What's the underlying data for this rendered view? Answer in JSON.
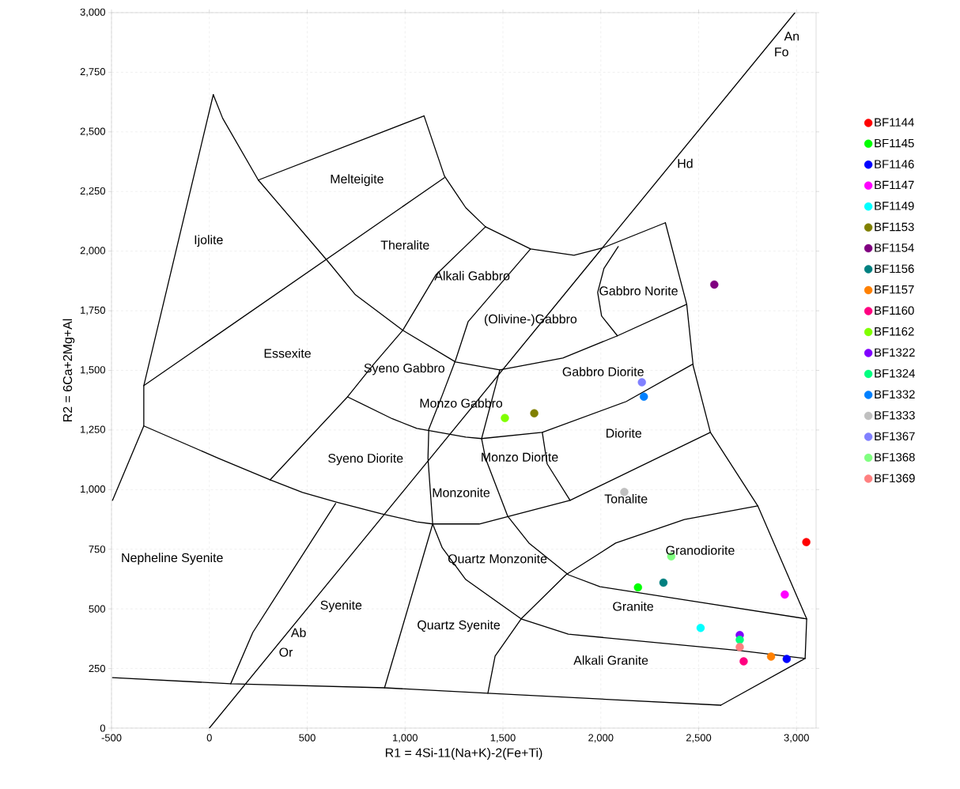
{
  "chart_data": {
    "type": "scatter",
    "xlabel": "R1 = 4Si-11(Na+K)-2(Fe+Ti)",
    "ylabel": "R2 = 6Ca+2Mg+Al",
    "xlim": [
      -500,
      3100
    ],
    "ylim": [
      0,
      3000
    ],
    "xticks": [
      -500,
      0,
      500,
      {
        "value": 1000,
        "label": "1,000"
      },
      {
        "value": 1500,
        "label": "1,500"
      },
      {
        "value": 2000,
        "label": "2,000"
      },
      {
        "value": 2500,
        "label": "2,500"
      },
      {
        "value": 3000,
        "label": "3,000"
      }
    ],
    "yticks": [
      0,
      250,
      500,
      750,
      {
        "value": 1000,
        "label": "1,000"
      },
      {
        "value": 1250,
        "label": "1,250"
      },
      {
        "value": 1500,
        "label": "1,500"
      },
      {
        "value": 1750,
        "label": "1,750"
      },
      {
        "value": 2000,
        "label": "2,000"
      },
      {
        "value": 2250,
        "label": "2,250"
      },
      {
        "value": 2500,
        "label": "2,500"
      },
      {
        "value": 2750,
        "label": "2,750"
      },
      {
        "value": 3000,
        "label": "3,000"
      }
    ],
    "grid": true,
    "legend": "right",
    "series": [
      {
        "type": "line",
        "marker": "none",
        "color": "#000000",
        "x": [
          -495,
          -335,
          -335,
          20
        ],
        "values": [
          955,
          1267,
          1436,
          2656
        ]
      },
      {
        "type": "line",
        "marker": "none",
        "color": "#000000",
        "x": [
          20,
          68,
          250,
          613,
          746,
          988,
          1258,
          1484,
          1806,
          2085,
          2439
        ],
        "values": [
          2656,
          2557,
          2298,
          1950,
          1817,
          1668,
          1535,
          1502,
          1552,
          1645,
          1777
        ]
      },
      {
        "type": "line",
        "marker": "none",
        "color": "#000000",
        "x": [
          250,
          1097
        ],
        "values": [
          2298,
          2567
        ]
      },
      {
        "type": "line",
        "marker": "none",
        "color": "#000000",
        "x": [
          1097,
          1201,
          1310,
          1411,
          1641,
          1863,
          2008,
          2330
        ],
        "values": [
          2567,
          2315,
          2182,
          2102,
          2009,
          1983,
          2013,
          2119
        ]
      },
      {
        "type": "line",
        "marker": "none",
        "color": "#000000",
        "x": [
          -335,
          1201
        ],
        "values": [
          1436,
          2308
        ]
      },
      {
        "type": "line",
        "marker": "none",
        "color": "#000000",
        "x": [
          1411,
          1157,
          988,
          839,
          706,
          310
        ],
        "values": [
          2102,
          1900,
          1668,
          1525,
          1389,
          1041
        ]
      },
      {
        "type": "line",
        "marker": "none",
        "color": "#000000",
        "x": [
          1641,
          1322,
          1258,
          1190,
          1121,
          1117,
          1141,
          1190,
          1310,
          1593,
          1834,
          2709,
          3044
        ],
        "values": [
          2009,
          1704,
          1543,
          1396,
          1253,
          1131,
          856,
          756,
          623,
          458,
          394,
          325,
          292
        ]
      },
      {
        "type": "line",
        "marker": "none",
        "color": "#000000",
        "x": [
          0,
          2992
        ],
        "values": [
          0,
          3000
        ]
      },
      {
        "type": "line",
        "marker": "none",
        "color": "#000000",
        "x": [
          2089,
          2016,
          1984,
          2004,
          2085
        ],
        "values": [
          2019,
          1927,
          1827,
          1728,
          1645
        ]
      },
      {
        "type": "line",
        "marker": "none",
        "color": "#000000",
        "x": [
          2330,
          2439,
          2472,
          2560,
          2802,
          3052,
          3044,
          2613
        ],
        "values": [
          2119,
          1777,
          1519,
          1240,
          932,
          458,
          292,
          96
        ]
      },
      {
        "type": "line",
        "marker": "none",
        "color": "#000000",
        "x": [
          -495,
          109,
          895,
          1423,
          2613
        ],
        "values": [
          212,
          186,
          169,
          146,
          96
        ]
      },
      {
        "type": "line",
        "marker": "none",
        "color": "#000000",
        "x": [
          706,
          935,
          1060,
          1310,
          1391,
          1701,
          2129,
          2468
        ],
        "values": [
          1389,
          1297,
          1257,
          1220,
          1214,
          1240,
          1369,
          1525
        ]
      },
      {
        "type": "line",
        "marker": "none",
        "color": "#000000",
        "x": [
          1701,
          1726,
          1843
        ],
        "values": [
          1240,
          1108,
          955
        ]
      },
      {
        "type": "line",
        "marker": "none",
        "color": "#000000",
        "x": [
          -335,
          48,
          310,
          476,
          653,
          879,
          1060,
          1141,
          1379,
          1843,
          2560
        ],
        "values": [
          1267,
          1131,
          1041,
          988,
          947,
          899,
          865,
          856,
          856,
          955,
          1240
        ]
      },
      {
        "type": "line",
        "marker": "none",
        "color": "#000000",
        "x": [
          1423,
          1460,
          1593,
          1822,
          2076,
          2427,
          2802
        ],
        "values": [
          146,
          302,
          458,
          643,
          776,
          875,
          932
        ]
      },
      {
        "type": "line",
        "marker": "none",
        "color": "#000000",
        "x": [
          1484,
          1391,
          1411,
          1524,
          1633,
          1834,
          1996,
          3052
        ],
        "values": [
          1502,
          1214,
          1131,
          889,
          776,
          643,
          593,
          458
        ]
      },
      {
        "type": "line",
        "marker": "none",
        "color": "#000000",
        "x": [
          645,
          395,
          222,
          109
        ],
        "values": [
          942,
          623,
          401,
          186
        ]
      },
      {
        "type": "line",
        "marker": "none",
        "color": "#000000",
        "x": [
          1141,
          1089,
          895
        ],
        "values": [
          856,
          710,
          169
        ]
      },
      {
        "name": "BF1144",
        "marker": "circle",
        "color": "#ff0000",
        "x": [
          3050
        ],
        "values": [
          780
        ]
      },
      {
        "name": "BF1145",
        "marker": "circle",
        "color": "#00ff00",
        "x": [
          2190
        ],
        "values": [
          590
        ]
      },
      {
        "name": "BF1146",
        "marker": "circle",
        "color": "#0000ff",
        "x": [
          2950
        ],
        "values": [
          290
        ]
      },
      {
        "name": "BF1147",
        "marker": "circle",
        "color": "#ff00ff",
        "x": [
          2940
        ],
        "values": [
          560
        ]
      },
      {
        "name": "BF1149",
        "marker": "circle",
        "color": "#00ffff",
        "x": [
          2510
        ],
        "values": [
          420
        ]
      },
      {
        "name": "BF1153",
        "marker": "circle",
        "color": "#808000",
        "x": [
          1660
        ],
        "values": [
          1320
        ]
      },
      {
        "name": "BF1154",
        "marker": "circle",
        "color": "#800080",
        "x": [
          2580
        ],
        "values": [
          1860
        ]
      },
      {
        "name": "BF1156",
        "marker": "circle",
        "color": "#008080",
        "x": [
          2320
        ],
        "values": [
          610
        ]
      },
      {
        "name": "BF1157",
        "marker": "circle",
        "color": "#ff8000",
        "x": [
          2870
        ],
        "values": [
          300
        ]
      },
      {
        "name": "BF1160",
        "marker": "circle",
        "color": "#ff0080",
        "x": [
          2730
        ],
        "values": [
          280
        ]
      },
      {
        "name": "BF1162",
        "marker": "circle",
        "color": "#80ff00",
        "x": [
          1510
        ],
        "values": [
          1300
        ]
      },
      {
        "name": "BF1322",
        "marker": "circle",
        "color": "#8000ff",
        "x": [
          2710
        ],
        "values": [
          390
        ]
      },
      {
        "name": "BF1324",
        "marker": "circle",
        "color": "#00ff80",
        "x": [
          2710
        ],
        "values": [
          370
        ]
      },
      {
        "name": "BF1332",
        "marker": "circle",
        "color": "#0080ff",
        "x": [
          2220
        ],
        "values": [
          1390
        ]
      },
      {
        "name": "BF1333",
        "marker": "circle",
        "color": "#c0c0c0",
        "x": [
          2120
        ],
        "values": [
          990
        ]
      },
      {
        "name": "BF1367",
        "marker": "circle",
        "color": "#8080ff",
        "x": [
          2210
        ],
        "values": [
          1450
        ]
      },
      {
        "name": "BF1368",
        "marker": "circle",
        "color": "#80ff80",
        "x": [
          2360
        ],
        "values": [
          720
        ]
      },
      {
        "name": "BF1369",
        "marker": "circle",
        "color": "#ff8080",
        "x": [
          2710
        ],
        "values": [
          340
        ]
      }
    ],
    "annotations": [
      "Melteigite",
      "Ijolite",
      "Theralite",
      "Alkali Gabbro",
      "Gabbro Norite",
      "(Olivine-)Gabbro",
      "Essexite",
      "Syeno Gabbro",
      "Gabbro Diorite",
      "Monzo Gabbro",
      "Diorite",
      "Syeno Diorite",
      "Monzo Diorite",
      "Monzonite",
      "Tonalite",
      "Granodiorite",
      "Nepheline Syenite",
      "Quartz Monzonite",
      "Syenite",
      "Granite",
      "Ab",
      "Quartz Syenite",
      "Or",
      "Alkali Granite",
      "Hd",
      "An",
      "Fo"
    ]
  }
}
